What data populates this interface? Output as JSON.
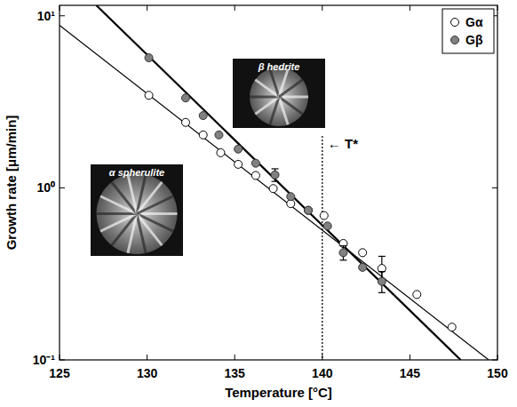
{
  "chart_data": {
    "type": "scatter",
    "log": "y",
    "grid": false,
    "legend": "upper right",
    "x_label": "Temperature [°C]",
    "y_label": "Growth rate [μm/min]",
    "xlim": [
      125,
      150
    ],
    "xticks": [
      125,
      130,
      135,
      140,
      145,
      150
    ],
    "ylim": [
      0.1,
      11.5
    ],
    "yticks": [
      {
        "value": 0.1,
        "label": "10⁻¹"
      },
      {
        "value": 1,
        "label": "10⁰"
      },
      {
        "value": 10,
        "label": "10¹"
      }
    ],
    "series": [
      {
        "name": "Gα",
        "type": "scatter",
        "marker": "circle-open",
        "color": "#000000",
        "x": [
          130.1,
          132.2,
          133.2,
          134.2,
          135.2,
          136.2,
          137.2,
          138.2,
          139.2,
          140.1,
          141.2,
          142.3,
          143.4,
          145.4,
          147.4
        ],
        "values": [
          3.45,
          2.4,
          2.03,
          1.6,
          1.37,
          1.18,
          0.99,
          0.81,
          0.74,
          0.69,
          0.475,
          0.42,
          0.34,
          0.24,
          0.155
        ],
        "errors": [
          null,
          null,
          null,
          null,
          null,
          null,
          null,
          null,
          null,
          null,
          null,
          null,
          0.06,
          null,
          null
        ]
      },
      {
        "name": "Gβ",
        "type": "scatter",
        "marker": "circle",
        "color": "#808080",
        "x": [
          130.1,
          132.2,
          133.2,
          134.1,
          135.2,
          136.2,
          137.3,
          138.2,
          139.2,
          140.3,
          141.2,
          142.3,
          143.4
        ],
        "values": [
          5.7,
          3.33,
          2.63,
          2.03,
          1.68,
          1.39,
          1.19,
          0.89,
          0.74,
          0.6,
          0.42,
          0.345,
          0.286
        ],
        "errors": [
          null,
          null,
          null,
          null,
          null,
          null,
          0.1,
          null,
          null,
          null,
          0.04,
          null,
          0.04
        ]
      },
      {
        "type": "line",
        "line_style": "solid",
        "color": "#000000",
        "x": [
          125,
          149.5
        ],
        "values": [
          8.8,
          0.1
        ]
      },
      {
        "type": "line",
        "line_style": "solid",
        "color": "#000000",
        "x": [
          127.1,
          147.9
        ],
        "values": [
          11.5,
          0.1
        ]
      }
    ],
    "reference_line": {
      "x": 140,
      "label": "← T*",
      "line_style": "dotted"
    },
    "insets": [
      {
        "label": "α spherulite"
      },
      {
        "label": "β hedrite"
      }
    ]
  }
}
